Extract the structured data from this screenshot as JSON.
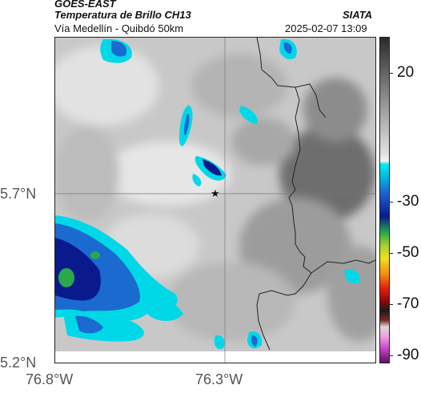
{
  "header": {
    "satellite": "GOES-EAST",
    "product": "Temperatura de Brillo CH13",
    "route": "Vía Medellín - Quibdó 50km",
    "agency": "SIATA",
    "timestamp": "2025-02-07 13:09"
  },
  "axes": {
    "lat_ticks": [
      "5.7°N",
      "5.2°N"
    ],
    "lon_ticks": [
      "76.8°W",
      "76.3°W"
    ]
  },
  "colorbar": {
    "tick_labels": [
      "20",
      "-30",
      "-50",
      "-70",
      "-90"
    ],
    "tick_values": [
      20,
      -30,
      -50,
      -70,
      -90
    ],
    "range": [
      -93,
      34
    ]
  },
  "marker": {
    "icon": "star-icon",
    "glyph": "★"
  },
  "colors": {
    "cloud_light": "#d6d6d6",
    "cloud_dark": "#5a5a5a",
    "cold_cyan": "#00d8e8",
    "cold_blue": "#1a6ad0",
    "cold_navy": "#0a1a8c",
    "core_green": "#2aa84a",
    "border_line": "#222222"
  }
}
